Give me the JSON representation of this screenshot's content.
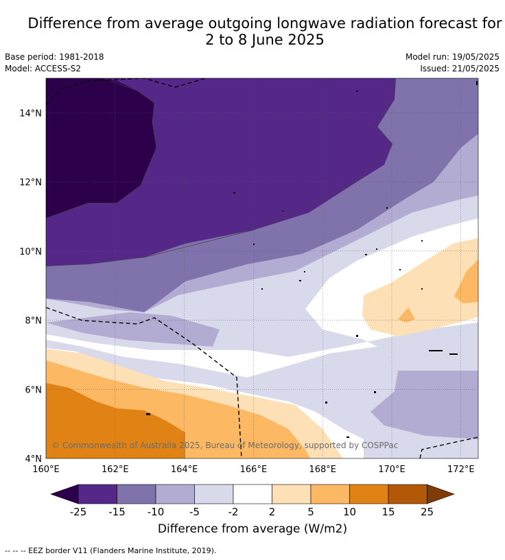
{
  "title": {
    "line1": "Difference from average outgoing longwave radiation forecast for",
    "line2": "2 to 8 June 2025"
  },
  "info": {
    "base_period": "Base period: 1981-2018",
    "model": "Model: ACCESS-S2",
    "model_run": "Model run: 19/05/2025",
    "issued": "Issued: 21/05/2025"
  },
  "map": {
    "x_ticks": [
      "160°E",
      "162°E",
      "164°E",
      "166°E",
      "168°E",
      "170°E",
      "172°E"
    ],
    "y_ticks": [
      "14°N",
      "12°N",
      "10°N",
      "8°N",
      "6°N",
      "4°N"
    ],
    "lon_range": [
      160,
      172.5
    ],
    "lat_range": [
      4,
      15
    ],
    "copyright": "© Commonwealth of Australia 2025, Bureau of Meteorology, supported by COSPPac"
  },
  "colorbar": {
    "labels": [
      "-25",
      "-15",
      "-10",
      "-5",
      "-2",
      "2",
      "5",
      "10",
      "15",
      "25"
    ],
    "colors": [
      "#2d004b",
      "#542788",
      "#8073ac",
      "#b2abd2",
      "#d8daeb",
      "#ffffff",
      "#fee0b6",
      "#fdb863",
      "#e08214",
      "#b35806",
      "#7f3b08"
    ],
    "title": "Difference from average (W/m2)"
  },
  "footnote": "-- -- -- EEZ border V11 (Flanders Marine Institute, 2019)."
}
